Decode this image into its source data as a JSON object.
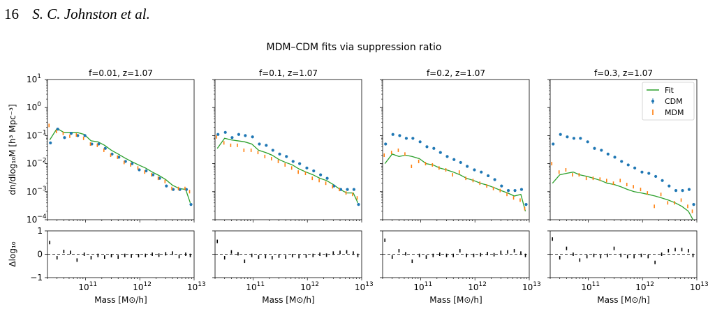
{
  "page_header": {
    "page_number": "16",
    "authors": "S. C. Johnston et al."
  },
  "figure": {
    "suptitle": "MDM–CDM fits via suppression ratio",
    "xlabel": "Mass [M⊙/h]",
    "ylabel_top": "dn/dlog₁₀M [h³ Mpc⁻³]",
    "ylabel_bottom": "Δlog₁₀",
    "legend": {
      "fit": "Fit",
      "cdm": "CDM",
      "mdm": "MDM",
      "position": "upper-right (last panel)"
    },
    "colors": {
      "fit": "#2ca02c",
      "cdm": "#1f77b4",
      "mdm": "#ff7f0e",
      "residual": "#000000"
    }
  },
  "chart_data": [
    {
      "type": "scatter",
      "title": "f=0.01, z=1.07",
      "xscale": "log",
      "yscale": "log",
      "xlim": [
        20000000000.0,
        10000000000000.0
      ],
      "ylim": [
        0.0001,
        10
      ],
      "x": [
        22000000000.0,
        30000000000.0,
        40000000000.0,
        53000000000.0,
        70000000000.0,
        95000000000.0,
        127000000000.0,
        170000000000.0,
        225000000000.0,
        300000000000.0,
        400000000000.0,
        530000000000.0,
        700000000000.0,
        950000000000.0,
        1270000000000.0,
        1700000000000.0,
        2250000000000.0,
        3000000000000.0,
        4000000000000.0,
        5300000000000.0,
        7000000000000.0,
        8500000000000.0
      ],
      "series": [
        {
          "name": "CDM",
          "values": [
            0.055,
            0.17,
            0.085,
            0.12,
            0.1,
            0.1,
            0.05,
            0.05,
            0.035,
            0.022,
            0.017,
            0.012,
            0.01,
            0.006,
            0.0055,
            0.004,
            0.003,
            0.0016,
            0.0012,
            0.0012,
            0.0012,
            0.00035
          ]
        },
        {
          "name": "MDM",
          "values": [
            0.23,
            0.14,
            0.12,
            0.095,
            0.105,
            0.08,
            0.05,
            0.045,
            0.03,
            0.02,
            0.017,
            0.011,
            0.009,
            0.007,
            0.005,
            0.004,
            0.003,
            0.0023,
            0.0013,
            0.0013,
            0.0013,
            0.001
          ]
        },
        {
          "name": "Fit",
          "values": [
            0.07,
            0.18,
            0.13,
            0.13,
            0.13,
            0.11,
            0.065,
            0.06,
            0.045,
            0.03,
            0.022,
            0.016,
            0.012,
            0.009,
            0.007,
            0.005,
            0.0038,
            0.0027,
            0.0017,
            0.0013,
            0.0012,
            0.0004
          ]
        }
      ],
      "residuals": {
        "ylim": [
          -1,
          1
        ],
        "values": [
          0.5,
          -0.15,
          0.12,
          0.08,
          -0.25,
          0.0,
          -0.15,
          -0.05,
          -0.12,
          -0.06,
          -0.12,
          -0.05,
          -0.08,
          -0.06,
          -0.05,
          0.0,
          -0.04,
          0.02,
          0.05,
          -0.1,
          0.0,
          -0.05
        ]
      }
    },
    {
      "type": "scatter",
      "title": "f=0.1, z=1.07",
      "xscale": "log",
      "yscale": "log",
      "xlim": [
        20000000000.0,
        10000000000000.0
      ],
      "ylim": [
        0.0001,
        10
      ],
      "x": [
        22000000000.0,
        30000000000.0,
        40000000000.0,
        53000000000.0,
        70000000000.0,
        95000000000.0,
        127000000000.0,
        170000000000.0,
        225000000000.0,
        300000000000.0,
        400000000000.0,
        530000000000.0,
        700000000000.0,
        950000000000.0,
        1270000000000.0,
        1700000000000.0,
        2250000000000.0,
        3000000000000.0,
        4000000000000.0,
        5300000000000.0,
        7000000000000.0,
        8500000000000.0
      ],
      "series": [
        {
          "name": "CDM",
          "values": [
            0.11,
            0.13,
            0.085,
            0.11,
            0.1,
            0.09,
            0.05,
            0.045,
            0.03,
            0.022,
            0.018,
            0.012,
            0.01,
            0.007,
            0.0055,
            0.004,
            0.003,
            0.0016,
            0.0012,
            0.0012,
            0.0012,
            0.00035
          ]
        },
        {
          "name": "MDM",
          "values": [
            0.09,
            0.055,
            0.045,
            0.045,
            0.03,
            0.03,
            0.025,
            0.018,
            0.015,
            0.012,
            0.009,
            0.007,
            0.005,
            0.0045,
            0.003,
            0.0025,
            0.002,
            0.0015,
            0.0012,
            0.0009,
            0.0008,
            0.0006
          ]
        },
        {
          "name": "Fit",
          "values": [
            0.035,
            0.08,
            0.07,
            0.065,
            0.06,
            0.05,
            0.03,
            0.025,
            0.02,
            0.014,
            0.011,
            0.009,
            0.0065,
            0.005,
            0.004,
            0.003,
            0.0025,
            0.0018,
            0.0012,
            0.0009,
            0.0009,
            0.0004
          ]
        }
      ],
      "residuals": {
        "ylim": [
          -1,
          1
        ],
        "values": [
          0.55,
          -0.15,
          0.1,
          0.02,
          -0.3,
          -0.05,
          -0.12,
          -0.1,
          -0.15,
          -0.08,
          -0.12,
          -0.06,
          -0.1,
          -0.08,
          -0.05,
          0.0,
          -0.04,
          0.05,
          0.08,
          0.1,
          0.05,
          -0.05
        ]
      }
    },
    {
      "type": "scatter",
      "title": "f=0.2, z=1.07",
      "xscale": "log",
      "yscale": "log",
      "xlim": [
        20000000000.0,
        10000000000000.0
      ],
      "ylim": [
        0.0001,
        10
      ],
      "x": [
        22000000000.0,
        30000000000.0,
        40000000000.0,
        53000000000.0,
        70000000000.0,
        95000000000.0,
        127000000000.0,
        170000000000.0,
        225000000000.0,
        300000000000.0,
        400000000000.0,
        530000000000.0,
        700000000000.0,
        950000000000.0,
        1270000000000.0,
        1700000000000.0,
        2250000000000.0,
        3000000000000.0,
        4000000000000.0,
        5300000000000.0,
        7000000000000.0,
        8500000000000.0
      ],
      "series": [
        {
          "name": "CDM",
          "values": [
            0.05,
            0.11,
            0.1,
            0.08,
            0.08,
            0.06,
            0.04,
            0.035,
            0.025,
            0.018,
            0.014,
            0.011,
            0.008,
            0.006,
            0.005,
            0.0037,
            0.0027,
            0.0016,
            0.0011,
            0.0011,
            0.0012,
            0.00035
          ]
        },
        {
          "name": "MDM",
          "values": [
            0.02,
            0.025,
            0.03,
            0.022,
            0.008,
            0.012,
            0.01,
            0.009,
            0.007,
            0.006,
            0.004,
            0.005,
            0.003,
            0.0025,
            0.002,
            0.0016,
            0.0013,
            0.0011,
            0.0008,
            0.0006,
            0.0005,
            0.00025
          ]
        },
        {
          "name": "Fit",
          "values": [
            0.01,
            0.022,
            0.018,
            0.02,
            0.018,
            0.015,
            0.01,
            0.009,
            0.007,
            0.006,
            0.005,
            0.004,
            0.003,
            0.0025,
            0.002,
            0.0017,
            0.0014,
            0.0011,
            0.0009,
            0.0007,
            0.0008,
            0.0002
          ]
        }
      ],
      "residuals": {
        "ylim": [
          -1,
          1
        ],
        "values": [
          0.6,
          -0.12,
          0.15,
          0.02,
          -0.3,
          -0.05,
          -0.12,
          -0.05,
          0.0,
          -0.05,
          -0.05,
          0.15,
          -0.05,
          -0.05,
          -0.02,
          0.03,
          -0.02,
          0.08,
          0.1,
          0.15,
          0.05,
          -0.05
        ]
      }
    },
    {
      "type": "scatter",
      "title": "f=0.3, z=1.07",
      "xscale": "log",
      "yscale": "log",
      "xlim": [
        20000000000.0,
        10000000000000.0
      ],
      "ylim": [
        0.0001,
        10
      ],
      "x": [
        22000000000.0,
        30000000000.0,
        40000000000.0,
        53000000000.0,
        70000000000.0,
        95000000000.0,
        127000000000.0,
        170000000000.0,
        225000000000.0,
        300000000000.0,
        400000000000.0,
        530000000000.0,
        700000000000.0,
        950000000000.0,
        1270000000000.0,
        1700000000000.0,
        2250000000000.0,
        3000000000000.0,
        4000000000000.0,
        5300000000000.0,
        7000000000000.0,
        8500000000000.0
      ],
      "series": [
        {
          "name": "CDM",
          "values": [
            0.05,
            0.11,
            0.09,
            0.08,
            0.08,
            0.06,
            0.035,
            0.03,
            0.022,
            0.017,
            0.012,
            0.009,
            0.007,
            0.005,
            0.0045,
            0.0035,
            0.0025,
            0.0016,
            0.0011,
            0.0011,
            0.0012,
            0.00035
          ]
        },
        {
          "name": "MDM",
          "values": [
            0.01,
            0.005,
            0.006,
            0.004,
            0.004,
            0.003,
            0.003,
            0.0028,
            0.0025,
            0.002,
            0.0025,
            0.0018,
            0.0015,
            0.0012,
            0.0009,
            0.0003,
            0.0008,
            0.0004,
            0.0004,
            0.0005,
            0.0003,
            0.0002
          ]
        },
        {
          "name": "Fit",
          "values": [
            0.002,
            0.004,
            0.0045,
            0.005,
            0.004,
            0.0035,
            0.003,
            0.0025,
            0.002,
            0.0018,
            0.0015,
            0.0012,
            0.001,
            0.0009,
            0.0008,
            0.0007,
            0.0006,
            0.0005,
            0.0004,
            0.0003,
            0.0002,
            0.0001
          ]
        }
      ],
      "residuals": {
        "ylim": [
          -1,
          1
        ],
        "values": [
          0.65,
          -0.15,
          0.25,
          0.0,
          -0.25,
          -0.1,
          -0.05,
          -0.1,
          -0.05,
          0.25,
          -0.05,
          -0.1,
          -0.1,
          -0.05,
          -0.1,
          -0.35,
          0.0,
          0.15,
          0.2,
          0.2,
          0.15,
          -0.05
        ]
      }
    }
  ]
}
